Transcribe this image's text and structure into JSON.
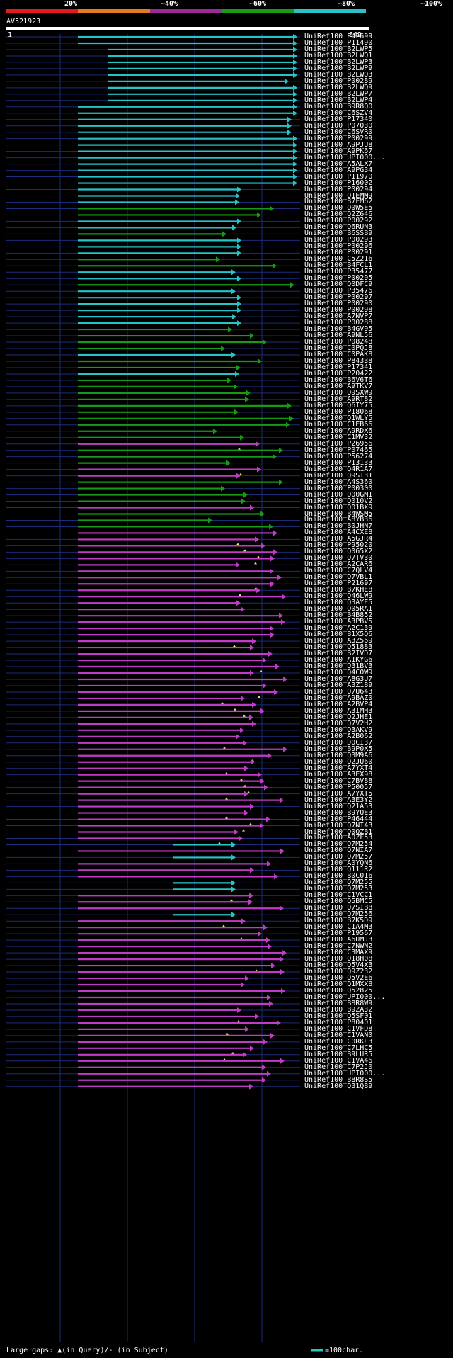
{
  "legend": {
    "percent_labels": [
      "20%",
      "~40%",
      "~60%",
      "~80%",
      "~100%"
    ],
    "colors": [
      "#e41a1c",
      "#e6781e",
      "#9b2a96",
      "#159b15",
      "#27c3c6"
    ]
  },
  "query": {
    "id": "AV521923",
    "start": "1",
    "end": "542"
  },
  "footer": {
    "gaps_text": "Large gaps: ▲(in Query)/- (in Subject)",
    "scale_text": "=100char."
  },
  "hits": [
    {
      "id": "UniRef100_P42699",
      "c": "cyan"
    },
    {
      "id": "UniRef100_P11490",
      "c": "cyan"
    },
    {
      "id": "UniRef100_B2LWP5",
      "c": "cyan"
    },
    {
      "id": "UniRef100_B2LWQ1",
      "c": "cyan"
    },
    {
      "id": "UniRef100_B2LWP3",
      "c": "cyan"
    },
    {
      "id": "UniRef100_B2LWP9",
      "c": "cyan"
    },
    {
      "id": "UniRef100_B2LWQ3",
      "c": "cyan"
    },
    {
      "id": "UniRef100_P00289",
      "c": "cyan"
    },
    {
      "id": "UniRef100_B2LWQ9",
      "c": "cyan"
    },
    {
      "id": "UniRef100_B2LWP7",
      "c": "cyan"
    },
    {
      "id": "UniRef100_B2LWP4",
      "c": "cyan"
    },
    {
      "id": "UniRef100_B9R8Q0",
      "c": "cyan"
    },
    {
      "id": "UniRef100_C6SZV4",
      "c": "cyan"
    },
    {
      "id": "UniRef100_P17340",
      "c": "cyan"
    },
    {
      "id": "UniRef100_P07030",
      "c": "cyan"
    },
    {
      "id": "UniRef100_C6SVR0",
      "c": "cyan"
    },
    {
      "id": "UniRef100_P00299",
      "c": "cyan"
    },
    {
      "id": "UniRef100_A9PJU8",
      "c": "cyan"
    },
    {
      "id": "UniRef100_A9PK67",
      "c": "cyan"
    },
    {
      "id": "UniRef100_UPI000...",
      "c": "cyan"
    },
    {
      "id": "UniRef100_A5ALX7",
      "c": "cyan"
    },
    {
      "id": "UniRef100_A9PG34",
      "c": "cyan"
    },
    {
      "id": "UniRef100_P11970",
      "c": "cyan"
    },
    {
      "id": "UniRef100_P16002",
      "c": "cyan"
    },
    {
      "id": "UniRef100_P00294",
      "c": "cyan"
    },
    {
      "id": "UniRef100_Q1EMM9",
      "c": "cyan"
    },
    {
      "id": "UniRef100_B7FM62",
      "c": "cyan"
    },
    {
      "id": "UniRef100_Q0W5E5",
      "c": "green"
    },
    {
      "id": "UniRef100_Q2Z646",
      "c": "green"
    },
    {
      "id": "UniRef100_P00292",
      "c": "cyan"
    },
    {
      "id": "UniRef100_Q6RUN3",
      "c": "cyan"
    },
    {
      "id": "UniRef100_B6SSB9",
      "c": "green"
    },
    {
      "id": "UniRef100_P00293",
      "c": "cyan"
    },
    {
      "id": "UniRef100_P00296",
      "c": "cyan"
    },
    {
      "id": "UniRef100_P00291",
      "c": "cyan"
    },
    {
      "id": "UniRef100_C5Z216",
      "c": "green"
    },
    {
      "id": "UniRef100_B4FCL1",
      "c": "green"
    },
    {
      "id": "UniRef100_P35477",
      "c": "cyan"
    },
    {
      "id": "UniRef100_P00295",
      "c": "cyan"
    },
    {
      "id": "UniRef100_Q0DFC9",
      "c": "green"
    },
    {
      "id": "UniRef100_P35476",
      "c": "cyan"
    },
    {
      "id": "UniRef100_P00297",
      "c": "cyan"
    },
    {
      "id": "UniRef100_P00290",
      "c": "cyan"
    },
    {
      "id": "UniRef100_P00298",
      "c": "cyan"
    },
    {
      "id": "UniRef100_A7NVP7",
      "c": "cyan"
    },
    {
      "id": "UniRef100_P00288",
      "c": "cyan"
    },
    {
      "id": "UniRef100_B4GV95",
      "c": "green"
    },
    {
      "id": "UniRef100_A9NL56",
      "c": "green"
    },
    {
      "id": "UniRef100_P08248",
      "c": "green"
    },
    {
      "id": "UniRef100_C0PQJ8",
      "c": "green"
    },
    {
      "id": "UniRef100_C0PAK8",
      "c": "cyan"
    },
    {
      "id": "UniRef100_P84338",
      "c": "green"
    },
    {
      "id": "UniRef100_P17341",
      "c": "green"
    },
    {
      "id": "UniRef100_P20422",
      "c": "cyan"
    },
    {
      "id": "UniRef100_B6V6T6",
      "c": "green"
    },
    {
      "id": "UniRef100_A9TKV7",
      "c": "green"
    },
    {
      "id": "UniRef100_Q9SXW9",
      "c": "green"
    },
    {
      "id": "UniRef100_A9RT82",
      "c": "green"
    },
    {
      "id": "UniRef100_Q6IY75",
      "c": "green"
    },
    {
      "id": "UniRef100_P18068",
      "c": "green"
    },
    {
      "id": "UniRef100_Q1WLY5",
      "c": "green"
    },
    {
      "id": "UniRef100_C1EB66",
      "c": "green"
    },
    {
      "id": "UniRef100_A9RDX6",
      "c": "green"
    },
    {
      "id": "UniRef100_C1MV32",
      "c": "green"
    },
    {
      "id": "UniRef100_P26956",
      "c": "magenta"
    },
    {
      "id": "UniRef100_P07465",
      "c": "green"
    },
    {
      "id": "UniRef100_P56274",
      "c": "green"
    },
    {
      "id": "UniRef100_P13133",
      "c": "green"
    },
    {
      "id": "UniRef100_Q4R1A7",
      "c": "magenta"
    },
    {
      "id": "UniRef100_Q9ST31",
      "c": "magenta"
    },
    {
      "id": "UniRef100_A4S360",
      "c": "green"
    },
    {
      "id": "UniRef100_P00300",
      "c": "green"
    },
    {
      "id": "UniRef100_Q00GM1",
      "c": "green"
    },
    {
      "id": "UniRef100_Q010V2",
      "c": "green"
    },
    {
      "id": "UniRef100_Q01BX9",
      "c": "magenta"
    },
    {
      "id": "UniRef100_B4WSM5",
      "c": "green"
    },
    {
      "id": "UniRef100_A8YB36",
      "c": "green"
    },
    {
      "id": "UniRef100_B0JHN7",
      "c": "green"
    },
    {
      "id": "UniRef100_A4CXE8",
      "c": "magenta"
    },
    {
      "id": "UniRef100_A5GJR4",
      "c": "magenta"
    },
    {
      "id": "UniRef100_P95020",
      "c": "magenta"
    },
    {
      "id": "UniRef100_Q065X2",
      "c": "magenta"
    },
    {
      "id": "UniRef100_Q7TV30",
      "c": "magenta"
    },
    {
      "id": "UniRef100_A2CAR6",
      "c": "magenta"
    },
    {
      "id": "UniRef100_C7QLV4",
      "c": "magenta"
    },
    {
      "id": "UniRef100_Q7VBL1",
      "c": "magenta"
    },
    {
      "id": "UniRef100_P21697",
      "c": "magenta"
    },
    {
      "id": "UniRef100_B7KHE8",
      "c": "magenta"
    },
    {
      "id": "UniRef100_Q46LW9",
      "c": "magenta"
    },
    {
      "id": "UniRef100_Q3AYE5",
      "c": "magenta"
    },
    {
      "id": "UniRef100_Q05RA1",
      "c": "magenta"
    },
    {
      "id": "UniRef100_B4B852",
      "c": "magenta"
    },
    {
      "id": "UniRef100_A3PBV5",
      "c": "magenta"
    },
    {
      "id": "UniRef100_A2C139",
      "c": "magenta"
    },
    {
      "id": "UniRef100_B1X5Q6",
      "c": "magenta"
    },
    {
      "id": "UniRef100_A3Z569",
      "c": "magenta"
    },
    {
      "id": "UniRef100_Q51883",
      "c": "magenta"
    },
    {
      "id": "UniRef100_B2IVD7",
      "c": "magenta"
    },
    {
      "id": "UniRef100_A1KYG6",
      "c": "magenta"
    },
    {
      "id": "UniRef100_Q31BV3",
      "c": "magenta"
    },
    {
      "id": "UniRef100_Q4C0W9",
      "c": "magenta"
    },
    {
      "id": "UniRef100_A8G3U7",
      "c": "magenta"
    },
    {
      "id": "UniRef100_A3Z189",
      "c": "magenta"
    },
    {
      "id": "UniRef100_Q7U643",
      "c": "magenta"
    },
    {
      "id": "UniRef100_A9BAZ0",
      "c": "magenta"
    },
    {
      "id": "UniRef100_A2BVP4",
      "c": "magenta"
    },
    {
      "id": "UniRef100_A3IMH3",
      "c": "magenta"
    },
    {
      "id": "UniRef100_Q2JHE1",
      "c": "magenta"
    },
    {
      "id": "UniRef100_Q7V2H2",
      "c": "magenta"
    },
    {
      "id": "UniRef100_Q3AKV9",
      "c": "magenta"
    },
    {
      "id": "UniRef100_A2B062",
      "c": "magenta"
    },
    {
      "id": "UniRef100_D0CI37",
      "c": "magenta"
    },
    {
      "id": "UniRef100_B9P0X5",
      "c": "magenta"
    },
    {
      "id": "UniRef100_Q3M9A6",
      "c": "magenta"
    },
    {
      "id": "UniRef100_Q2JU60",
      "c": "magenta"
    },
    {
      "id": "UniRef100_A7YXT4",
      "c": "magenta"
    },
    {
      "id": "UniRef100_A3EX98",
      "c": "magenta"
    },
    {
      "id": "UniRef100_C7BV88",
      "c": "magenta"
    },
    {
      "id": "UniRef100_P50057",
      "c": "magenta"
    },
    {
      "id": "UniRef100_A7YXT5",
      "c": "magenta"
    },
    {
      "id": "UniRef100_A3E3Y2",
      "c": "magenta"
    },
    {
      "id": "UniRef100_Q21A53",
      "c": "magenta"
    },
    {
      "id": "UniRef100_B9YQE3",
      "c": "magenta"
    },
    {
      "id": "UniRef100_P46444",
      "c": "magenta"
    },
    {
      "id": "UniRef100_Q7NI43",
      "c": "magenta"
    },
    {
      "id": "UniRef100_Q0QZB1",
      "c": "magenta"
    },
    {
      "id": "UniRef100_A0ZF53",
      "c": "magenta"
    },
    {
      "id": "UniRef100_Q7M254",
      "c": "cyan"
    },
    {
      "id": "UniRef100_Q7NIA7",
      "c": "magenta"
    },
    {
      "id": "UniRef100_Q7M257",
      "c": "cyan"
    },
    {
      "id": "UniRef100_A0YQN6",
      "c": "magenta"
    },
    {
      "id": "UniRef100_Q111R2",
      "c": "magenta"
    },
    {
      "id": "UniRef100_B0C016",
      "c": "magenta"
    },
    {
      "id": "UniRef100_Q7M255",
      "c": "cyan"
    },
    {
      "id": "UniRef100_Q7M253",
      "c": "cyan"
    },
    {
      "id": "UniRef100_C1VCC1",
      "c": "magenta"
    },
    {
      "id": "UniRef100_Q5BMC5",
      "c": "magenta"
    },
    {
      "id": "UniRef100_Q7SIB8",
      "c": "magenta"
    },
    {
      "id": "UniRef100_Q7M256",
      "c": "cyan"
    },
    {
      "id": "UniRef100_B7K5D9",
      "c": "magenta"
    },
    {
      "id": "UniRef100_C1A4M3",
      "c": "magenta"
    },
    {
      "id": "UniRef100_P19567",
      "c": "magenta"
    },
    {
      "id": "UniRef100_A6UMJ3",
      "c": "magenta"
    },
    {
      "id": "UniRef100_C7NWN2",
      "c": "magenta"
    },
    {
      "id": "UniRef100_C3MAX9",
      "c": "magenta"
    },
    {
      "id": "UniRef100_Q18H08",
      "c": "magenta"
    },
    {
      "id": "UniRef100_Q5V4X3",
      "c": "magenta"
    },
    {
      "id": "UniRef100_Q9Z232",
      "c": "magenta"
    },
    {
      "id": "UniRef100_Q5V2E6",
      "c": "magenta"
    },
    {
      "id": "UniRef100_Q1MXX8",
      "c": "magenta"
    },
    {
      "id": "UniRef100_Q52825",
      "c": "magenta"
    },
    {
      "id": "UniRef100_UPI000...",
      "c": "magenta"
    },
    {
      "id": "UniRef100_B8R8W9",
      "c": "magenta"
    },
    {
      "id": "UniRef100_B9ZA32",
      "c": "magenta"
    },
    {
      "id": "UniRef100_Q5SF01",
      "c": "magenta"
    },
    {
      "id": "UniRef100_P80401",
      "c": "magenta"
    },
    {
      "id": "UniRef100_C1VFD8",
      "c": "magenta"
    },
    {
      "id": "UniRef100_C1VAN0",
      "c": "magenta"
    },
    {
      "id": "UniRef100_C0RKL3",
      "c": "magenta"
    },
    {
      "id": "UniRef100_C7LHC5",
      "c": "magenta"
    },
    {
      "id": "UniRef100_B9LUR5",
      "c": "magenta"
    },
    {
      "id": "UniRef100_C1VA46",
      "c": "magenta"
    },
    {
      "id": "UniRef100_C7P2J0",
      "c": "magenta"
    },
    {
      "id": "UniRef100_UPI000...",
      "c": "magenta"
    },
    {
      "id": "UniRef100_B8R8S5",
      "c": "magenta"
    },
    {
      "id": "UniRef100_Q31Q89",
      "c": "magenta"
    }
  ]
}
